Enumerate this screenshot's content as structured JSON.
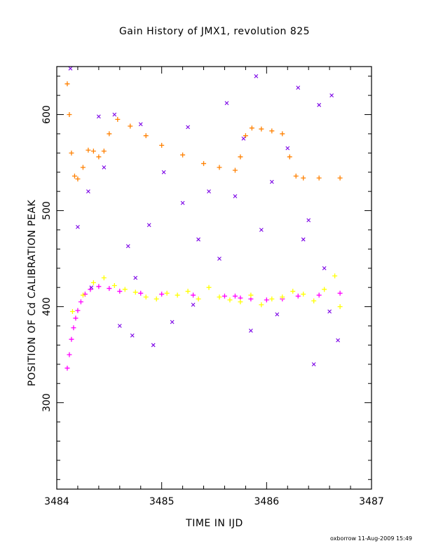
{
  "title": "Gain History of JMX1, revolution 825",
  "xlabel": "TIME IN IJD",
  "ylabel": "POSITION OF Cd CALIBRATION PEAK",
  "credit": "oxborrow 11-Aug-2009 15:49",
  "chart_data": {
    "type": "scatter",
    "title": "Gain History of JMX1, revolution 825",
    "xlabel": "TIME IN IJD",
    "ylabel": "POSITION OF Cd CALIBRATION PEAK",
    "xlim": [
      3484,
      3487
    ],
    "ylim": [
      210,
      650
    ],
    "x_ticks": [
      3484,
      3485,
      3486,
      3487
    ],
    "x_tick_labels": [
      "3484",
      "3485",
      "3486",
      "3487"
    ],
    "y_ticks": [
      300,
      400,
      500,
      600
    ],
    "y_tick_labels": [
      "300",
      "400",
      "500",
      "600"
    ],
    "grid": false,
    "legend": "none",
    "series": [
      {
        "marker": "plus",
        "color": "#ff8000",
        "x": [
          3484.1,
          3484.12,
          3484.14,
          3484.17,
          3484.2,
          3484.25,
          3484.3,
          3484.35,
          3484.4,
          3484.45,
          3484.5,
          3484.58,
          3484.7,
          3484.85,
          3485.0,
          3485.2,
          3485.4,
          3485.55,
          3485.7,
          3485.75,
          3485.8,
          3485.86,
          3485.95,
          3486.05,
          3486.15,
          3486.22,
          3486.28,
          3486.35,
          3486.5,
          3486.7
        ],
        "y": [
          632,
          600,
          560,
          536,
          533,
          545,
          563,
          562,
          556,
          562,
          580,
          595,
          588,
          578,
          568,
          558,
          549,
          545,
          542,
          556,
          578,
          586,
          585,
          583,
          580,
          556,
          536,
          534,
          534,
          534
        ]
      },
      {
        "marker": "plus",
        "color": "#ff00ff",
        "x": [
          3484.1,
          3484.12,
          3484.14,
          3484.16,
          3484.18,
          3484.2,
          3484.23,
          3484.27,
          3484.32,
          3484.4,
          3484.5,
          3484.6,
          3484.8,
          3485.0,
          3485.3,
          3485.6,
          3485.7,
          3485.75,
          3485.85,
          3486.0,
          3486.15,
          3486.3,
          3486.5,
          3486.7
        ],
        "y": [
          336,
          350,
          366,
          378,
          388,
          396,
          405,
          413,
          418,
          421,
          419,
          416,
          414,
          413,
          412,
          411,
          411,
          409,
          408,
          407,
          408,
          411,
          412,
          414
        ]
      },
      {
        "marker": "plus",
        "color": "#ffff00",
        "x": [
          3484.15,
          3484.25,
          3484.35,
          3484.45,
          3484.55,
          3484.65,
          3484.75,
          3484.85,
          3484.95,
          3485.05,
          3485.15,
          3485.25,
          3485.35,
          3485.45,
          3485.55,
          3485.65,
          3485.75,
          3485.85,
          3485.95,
          3486.05,
          3486.15,
          3486.25,
          3486.35,
          3486.45,
          3486.55,
          3486.65,
          3486.7
        ],
        "y": [
          395,
          412,
          425,
          430,
          422,
          418,
          415,
          410,
          408,
          414,
          412,
          416,
          408,
          420,
          410,
          407,
          405,
          412,
          402,
          408,
          410,
          416,
          413,
          406,
          418,
          432,
          400
        ]
      },
      {
        "marker": "x",
        "color": "#7a00e6",
        "x": [
          3484.13,
          3484.2,
          3484.3,
          3484.33,
          3484.45,
          3484.55,
          3484.6,
          3484.68,
          3484.72,
          3484.8,
          3484.88,
          3484.92,
          3485.02,
          3485.1,
          3485.2,
          3485.25,
          3485.35,
          3485.45,
          3485.55,
          3485.62,
          3485.7,
          3485.78,
          3485.9,
          3485.95,
          3486.05,
          3486.1,
          3486.2,
          3486.3,
          3486.4,
          3486.45,
          3486.5,
          3486.55,
          3486.62,
          3486.68,
          3484.4,
          3484.75,
          3485.3,
          3485.85,
          3486.35,
          3486.6
        ],
        "y": [
          648,
          483,
          520,
          420,
          545,
          600,
          380,
          463,
          370,
          590,
          485,
          360,
          540,
          384,
          508,
          587,
          470,
          520,
          450,
          612,
          515,
          575,
          640,
          480,
          530,
          392,
          565,
          628,
          490,
          340,
          610,
          440,
          620,
          365,
          598,
          430,
          402,
          375,
          470,
          395
        ]
      }
    ]
  }
}
